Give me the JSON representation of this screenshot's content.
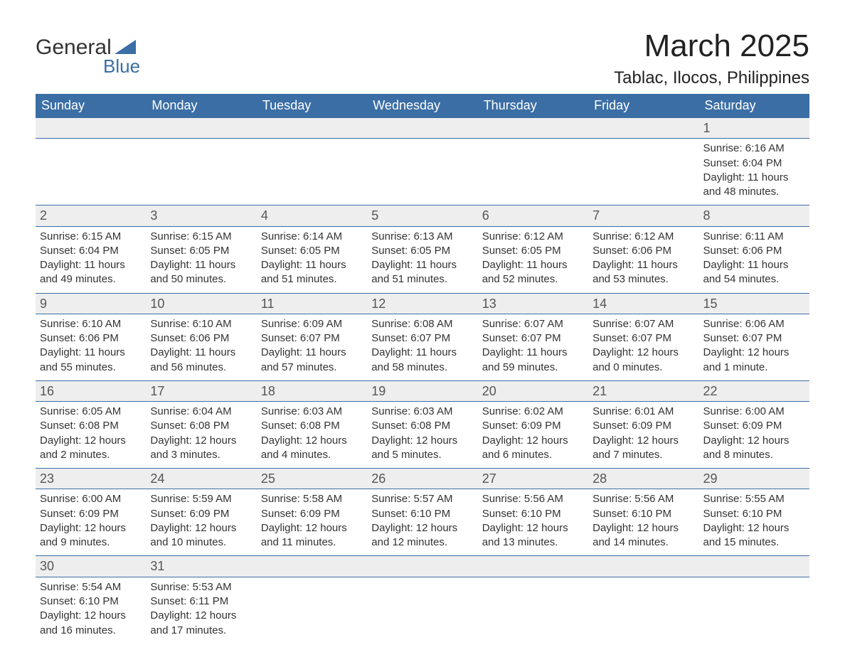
{
  "logo": {
    "word1": "General",
    "word2": "Blue",
    "brand_color": "#3b6ea5"
  },
  "title": "March 2025",
  "location": "Tablac, Ilocos, Philippines",
  "header_bg": "#3b6ea5",
  "header_fg": "#ffffff",
  "daynum_bg": "#eeeeee",
  "border_color": "#3b6ea5",
  "day_names": [
    "Sunday",
    "Monday",
    "Tuesday",
    "Wednesday",
    "Thursday",
    "Friday",
    "Saturday"
  ],
  "weeks": [
    [
      null,
      null,
      null,
      null,
      null,
      null,
      {
        "n": "1",
        "sr": "Sunrise: 6:16 AM",
        "ss": "Sunset: 6:04 PM",
        "dl": "Daylight: 11 hours and 48 minutes."
      }
    ],
    [
      {
        "n": "2",
        "sr": "Sunrise: 6:15 AM",
        "ss": "Sunset: 6:04 PM",
        "dl": "Daylight: 11 hours and 49 minutes."
      },
      {
        "n": "3",
        "sr": "Sunrise: 6:15 AM",
        "ss": "Sunset: 6:05 PM",
        "dl": "Daylight: 11 hours and 50 minutes."
      },
      {
        "n": "4",
        "sr": "Sunrise: 6:14 AM",
        "ss": "Sunset: 6:05 PM",
        "dl": "Daylight: 11 hours and 51 minutes."
      },
      {
        "n": "5",
        "sr": "Sunrise: 6:13 AM",
        "ss": "Sunset: 6:05 PM",
        "dl": "Daylight: 11 hours and 51 minutes."
      },
      {
        "n": "6",
        "sr": "Sunrise: 6:12 AM",
        "ss": "Sunset: 6:05 PM",
        "dl": "Daylight: 11 hours and 52 minutes."
      },
      {
        "n": "7",
        "sr": "Sunrise: 6:12 AM",
        "ss": "Sunset: 6:06 PM",
        "dl": "Daylight: 11 hours and 53 minutes."
      },
      {
        "n": "8",
        "sr": "Sunrise: 6:11 AM",
        "ss": "Sunset: 6:06 PM",
        "dl": "Daylight: 11 hours and 54 minutes."
      }
    ],
    [
      {
        "n": "9",
        "sr": "Sunrise: 6:10 AM",
        "ss": "Sunset: 6:06 PM",
        "dl": "Daylight: 11 hours and 55 minutes."
      },
      {
        "n": "10",
        "sr": "Sunrise: 6:10 AM",
        "ss": "Sunset: 6:06 PM",
        "dl": "Daylight: 11 hours and 56 minutes."
      },
      {
        "n": "11",
        "sr": "Sunrise: 6:09 AM",
        "ss": "Sunset: 6:07 PM",
        "dl": "Daylight: 11 hours and 57 minutes."
      },
      {
        "n": "12",
        "sr": "Sunrise: 6:08 AM",
        "ss": "Sunset: 6:07 PM",
        "dl": "Daylight: 11 hours and 58 minutes."
      },
      {
        "n": "13",
        "sr": "Sunrise: 6:07 AM",
        "ss": "Sunset: 6:07 PM",
        "dl": "Daylight: 11 hours and 59 minutes."
      },
      {
        "n": "14",
        "sr": "Sunrise: 6:07 AM",
        "ss": "Sunset: 6:07 PM",
        "dl": "Daylight: 12 hours and 0 minutes."
      },
      {
        "n": "15",
        "sr": "Sunrise: 6:06 AM",
        "ss": "Sunset: 6:07 PM",
        "dl": "Daylight: 12 hours and 1 minute."
      }
    ],
    [
      {
        "n": "16",
        "sr": "Sunrise: 6:05 AM",
        "ss": "Sunset: 6:08 PM",
        "dl": "Daylight: 12 hours and 2 minutes."
      },
      {
        "n": "17",
        "sr": "Sunrise: 6:04 AM",
        "ss": "Sunset: 6:08 PM",
        "dl": "Daylight: 12 hours and 3 minutes."
      },
      {
        "n": "18",
        "sr": "Sunrise: 6:03 AM",
        "ss": "Sunset: 6:08 PM",
        "dl": "Daylight: 12 hours and 4 minutes."
      },
      {
        "n": "19",
        "sr": "Sunrise: 6:03 AM",
        "ss": "Sunset: 6:08 PM",
        "dl": "Daylight: 12 hours and 5 minutes."
      },
      {
        "n": "20",
        "sr": "Sunrise: 6:02 AM",
        "ss": "Sunset: 6:09 PM",
        "dl": "Daylight: 12 hours and 6 minutes."
      },
      {
        "n": "21",
        "sr": "Sunrise: 6:01 AM",
        "ss": "Sunset: 6:09 PM",
        "dl": "Daylight: 12 hours and 7 minutes."
      },
      {
        "n": "22",
        "sr": "Sunrise: 6:00 AM",
        "ss": "Sunset: 6:09 PM",
        "dl": "Daylight: 12 hours and 8 minutes."
      }
    ],
    [
      {
        "n": "23",
        "sr": "Sunrise: 6:00 AM",
        "ss": "Sunset: 6:09 PM",
        "dl": "Daylight: 12 hours and 9 minutes."
      },
      {
        "n": "24",
        "sr": "Sunrise: 5:59 AM",
        "ss": "Sunset: 6:09 PM",
        "dl": "Daylight: 12 hours and 10 minutes."
      },
      {
        "n": "25",
        "sr": "Sunrise: 5:58 AM",
        "ss": "Sunset: 6:09 PM",
        "dl": "Daylight: 12 hours and 11 minutes."
      },
      {
        "n": "26",
        "sr": "Sunrise: 5:57 AM",
        "ss": "Sunset: 6:10 PM",
        "dl": "Daylight: 12 hours and 12 minutes."
      },
      {
        "n": "27",
        "sr": "Sunrise: 5:56 AM",
        "ss": "Sunset: 6:10 PM",
        "dl": "Daylight: 12 hours and 13 minutes."
      },
      {
        "n": "28",
        "sr": "Sunrise: 5:56 AM",
        "ss": "Sunset: 6:10 PM",
        "dl": "Daylight: 12 hours and 14 minutes."
      },
      {
        "n": "29",
        "sr": "Sunrise: 5:55 AM",
        "ss": "Sunset: 6:10 PM",
        "dl": "Daylight: 12 hours and 15 minutes."
      }
    ],
    [
      {
        "n": "30",
        "sr": "Sunrise: 5:54 AM",
        "ss": "Sunset: 6:10 PM",
        "dl": "Daylight: 12 hours and 16 minutes."
      },
      {
        "n": "31",
        "sr": "Sunrise: 5:53 AM",
        "ss": "Sunset: 6:11 PM",
        "dl": "Daylight: 12 hours and 17 minutes."
      },
      null,
      null,
      null,
      null,
      null
    ]
  ]
}
